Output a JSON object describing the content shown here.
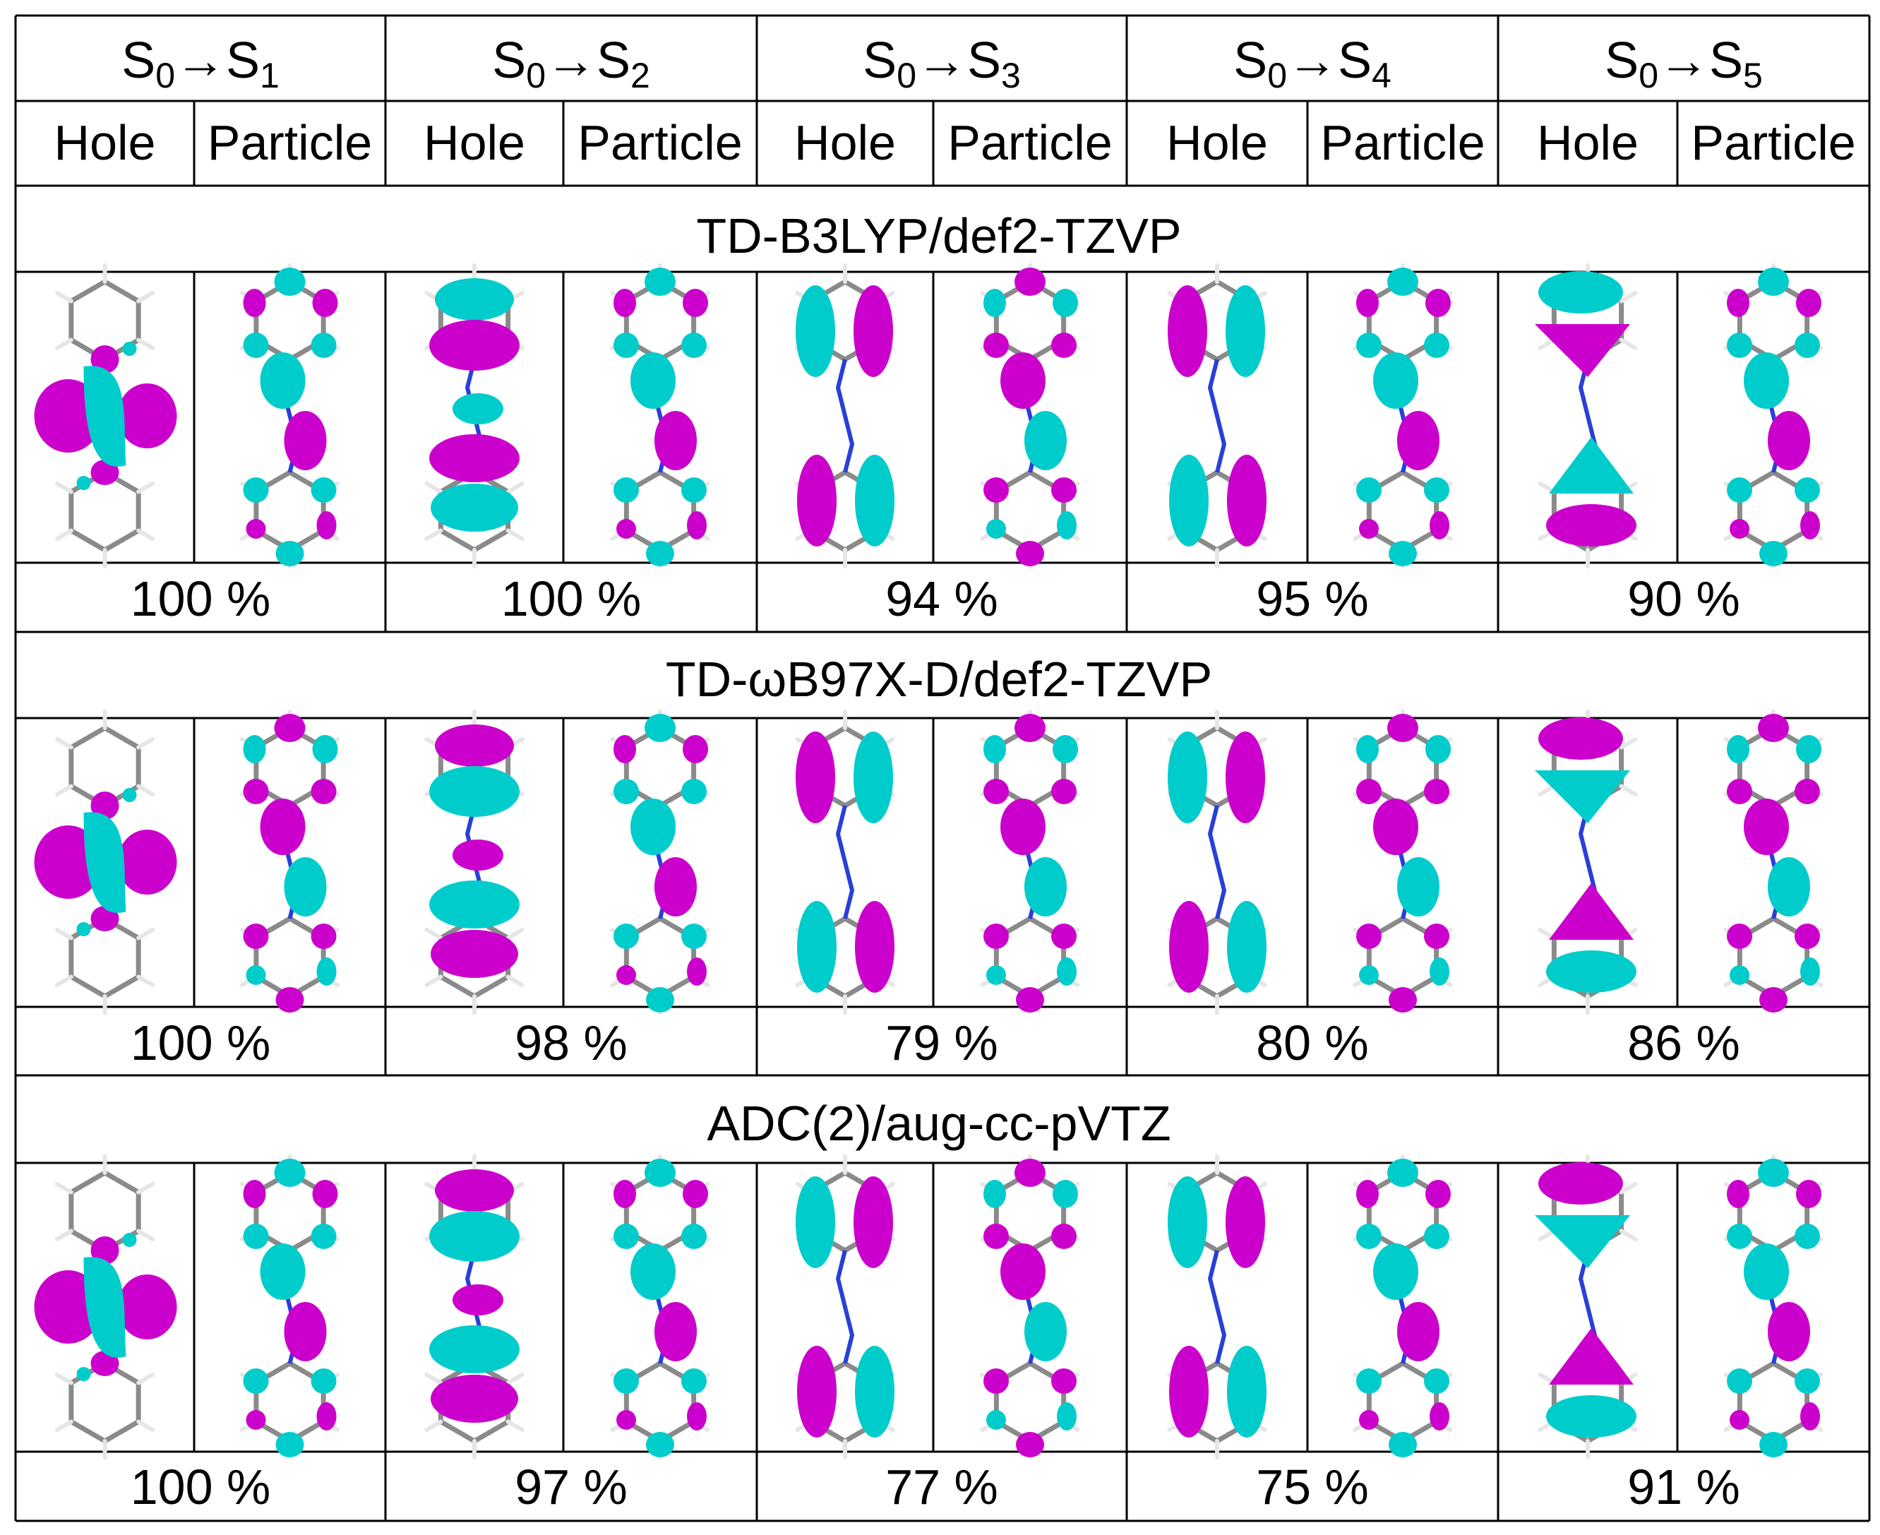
{
  "colors": {
    "positive_lobe": "#00CCCC",
    "negative_lobe": "#CC00CC",
    "carbon_bond": "#8a8a8a",
    "nitrogen_bond": "#2a3fd6",
    "hydrogen": "#e6e6e6",
    "grid_line": "#000000"
  },
  "header": {
    "transitions": [
      {
        "base": "S",
        "from_sub": "0",
        "arrow": "→",
        "to_base": "S",
        "to_sub": "1"
      },
      {
        "base": "S",
        "from_sub": "0",
        "arrow": "→",
        "to_base": "S",
        "to_sub": "2"
      },
      {
        "base": "S",
        "from_sub": "0",
        "arrow": "→",
        "to_base": "S",
        "to_sub": "3"
      },
      {
        "base": "S",
        "from_sub": "0",
        "arrow": "→",
        "to_base": "S",
        "to_sub": "4"
      },
      {
        "base": "S",
        "from_sub": "0",
        "arrow": "→",
        "to_base": "S",
        "to_sub": "5"
      }
    ],
    "hole_label": "Hole",
    "particle_label": "Particle"
  },
  "methods": [
    {
      "name": "TD-B3LYP/def2-TZVP",
      "percentages": [
        "100 %",
        "100 %",
        "94 %",
        "95 %",
        "90 %"
      ],
      "orbitals": [
        {
          "hole": "localized-n",
          "hole_flip": false,
          "particle": "pi-star",
          "particle_flip": false
        },
        {
          "hole": "pi-three",
          "hole_flip": false,
          "particle": "pi-star",
          "particle_flip": false
        },
        {
          "hole": "ring-pi",
          "hole_flip": false,
          "particle": "pi-star",
          "particle_flip": true
        },
        {
          "hole": "ring-pi",
          "hole_flip": true,
          "particle": "pi-star",
          "particle_flip": false
        },
        {
          "hole": "pi-tri",
          "hole_flip": false,
          "particle": "pi-star",
          "particle_flip": false
        }
      ]
    },
    {
      "name": "TD-ωB97X-D/def2-TZVP",
      "percentages": [
        "100 %",
        "98 %",
        "79 %",
        "80 %",
        "86 %"
      ],
      "orbitals": [
        {
          "hole": "localized-n",
          "hole_flip": false,
          "particle": "pi-star",
          "particle_flip": true
        },
        {
          "hole": "pi-three",
          "hole_flip": true,
          "particle": "pi-star",
          "particle_flip": false
        },
        {
          "hole": "ring-pi",
          "hole_flip": true,
          "particle": "pi-star",
          "particle_flip": true
        },
        {
          "hole": "ring-pi",
          "hole_flip": false,
          "particle": "pi-star",
          "particle_flip": true
        },
        {
          "hole": "pi-tri",
          "hole_flip": true,
          "particle": "pi-star",
          "particle_flip": true
        }
      ]
    },
    {
      "name": "ADC(2)/aug-cc-pVTZ",
      "percentages": [
        "100 %",
        "97 %",
        "77 %",
        "75 %",
        "91 %"
      ],
      "orbitals": [
        {
          "hole": "localized-n",
          "hole_flip": false,
          "particle": "pi-star",
          "particle_flip": false
        },
        {
          "hole": "pi-three",
          "hole_flip": true,
          "particle": "pi-star",
          "particle_flip": false
        },
        {
          "hole": "ring-pi",
          "hole_flip": false,
          "particle": "pi-star",
          "particle_flip": true
        },
        {
          "hole": "ring-pi",
          "hole_flip": false,
          "particle": "pi-star",
          "particle_flip": false
        },
        {
          "hole": "pi-tri",
          "hole_flip": true,
          "particle": "pi-star",
          "particle_flip": false
        }
      ]
    }
  ]
}
